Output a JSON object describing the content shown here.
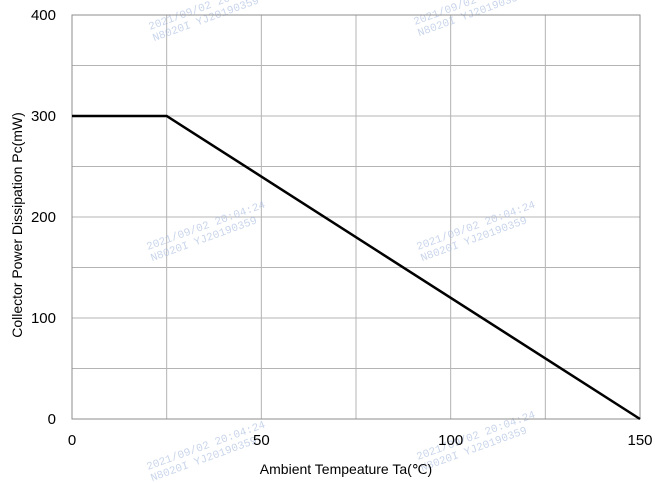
{
  "chart_data": {
    "type": "line",
    "xlabel": "Ambient Tempeature Ta(℃)",
    "ylabel": "Collector Power Dissipation   Pc(mW)",
    "xlim": [
      0,
      150
    ],
    "ylim": [
      0,
      400
    ],
    "x_ticks": [
      "0",
      "50",
      "100",
      "150"
    ],
    "y_ticks": [
      "0",
      "100",
      "200",
      "300",
      "400"
    ],
    "x_grid_step": 25,
    "y_grid_step": 50,
    "grid": true,
    "legend": "none",
    "line_color": "#000000",
    "grid_color": "#b4b4b4",
    "series": [
      {
        "x": [
          0,
          25,
          150
        ],
        "y": [
          300,
          300,
          0
        ]
      }
    ],
    "watermark": {
      "line1": "2021/09/02 20:04:24",
      "line2": "N8020I YJ20190359"
    }
  }
}
